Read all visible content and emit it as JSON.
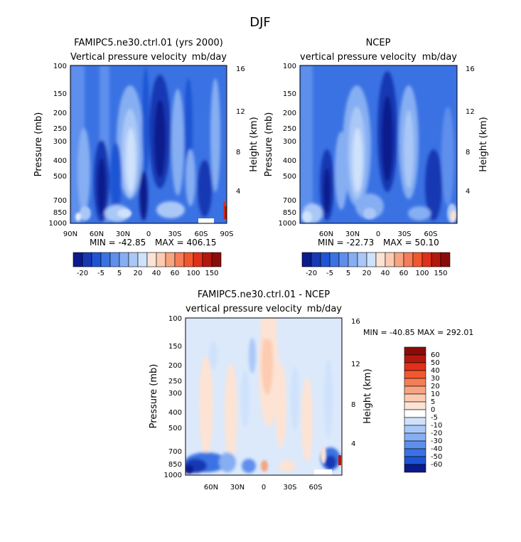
{
  "page_title": "DJF",
  "colors": {
    "blue_scale": [
      "#0b1a8c",
      "#1838b3",
      "#1f55d4",
      "#3a72e3",
      "#5f8fed",
      "#86aef2",
      "#aac8f7",
      "#cfe2fb",
      "#e4effd"
    ],
    "red_scale": [
      "#fde3d4",
      "#fccbb1",
      "#f7a581",
      "#f57d57",
      "#f2582e",
      "#e0301a",
      "#b3180d",
      "#8a0c08"
    ],
    "neutral": "#dbe9fb"
  },
  "chart_data": [
    {
      "type": "heatmap",
      "title": "FAMIPC5.ne30.ctrl.01 (yrs 2000)",
      "subtitle_left": "Vertical pressure velocity",
      "subtitle_right": "mb/day",
      "ylabel": "Pressure (mb)",
      "y2label": "Height (km)",
      "pressure_ticks": [
        "100",
        "150",
        "200",
        "250",
        "300",
        "400",
        "500",
        "700",
        "850",
        "1000"
      ],
      "height_ticks": [
        "16",
        "12",
        "8",
        "4"
      ],
      "lat_ticks": [
        "90N",
        "60N",
        "30N",
        "0",
        "30S",
        "60S",
        "90S"
      ],
      "stats": {
        "min": "MIN = -42.85",
        "max": "MAX = 406.15"
      },
      "colorbar": {
        "levels": [
          "-20",
          "-5",
          "5",
          "20",
          "40",
          "60",
          "100",
          "150"
        ]
      }
    },
    {
      "type": "heatmap",
      "title": "NCEP",
      "subtitle_left": "vertical pressure velocity",
      "subtitle_right": "mb/day",
      "ylabel": "Pressure (mb)",
      "y2label": "Height (km)",
      "pressure_ticks": [
        "100",
        "150",
        "200",
        "250",
        "300",
        "400",
        "500",
        "700",
        "850",
        "1000"
      ],
      "height_ticks": [
        "16",
        "12",
        "8",
        "4"
      ],
      "lat_ticks": [
        "60N",
        "30N",
        "0",
        "30S",
        "60S"
      ],
      "stats": {
        "min": "MIN = -22.73",
        "max": "MAX = 50.10"
      },
      "colorbar": {
        "levels": [
          "-20",
          "-5",
          "5",
          "20",
          "40",
          "60",
          "100",
          "150"
        ]
      }
    },
    {
      "type": "heatmap",
      "title": "FAMIPC5.ne30.ctrl.01 - NCEP",
      "subtitle_left": "vertical pressure velocity",
      "subtitle_right": "mb/day",
      "ylabel": "Pressure (mb)",
      "y2label": "Height (km)",
      "pressure_ticks": [
        "100",
        "150",
        "200",
        "250",
        "300",
        "400",
        "500",
        "700",
        "850",
        "1000"
      ],
      "height_ticks": [
        "16",
        "12",
        "8",
        "4"
      ],
      "lat_ticks": [
        "60N",
        "30N",
        "0",
        "30S",
        "60S"
      ],
      "stats": {
        "text": "MIN = -40.85   MAX = 292.01"
      },
      "colorbar": {
        "levels": [
          "60",
          "50",
          "40",
          "30",
          "20",
          "10",
          "5",
          "0",
          "-5",
          "-10",
          "-20",
          "-30",
          "-40",
          "-50",
          "-60"
        ]
      }
    }
  ]
}
